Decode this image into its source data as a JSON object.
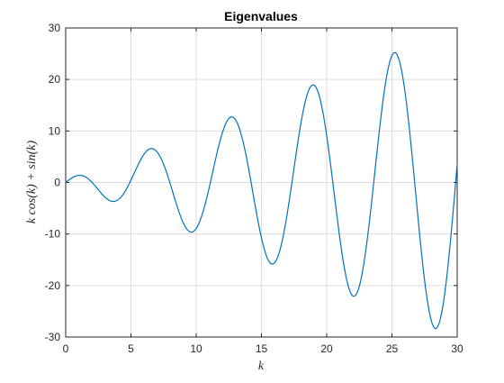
{
  "chart_data": {
    "type": "line",
    "title": "Eigenvalues",
    "xlabel": "k",
    "ylabel": "k cos(k) + sin(k)",
    "xlim": [
      0,
      30
    ],
    "ylim": [
      -30,
      30
    ],
    "xticks": [
      0,
      5,
      10,
      15,
      20,
      25,
      30
    ],
    "yticks": [
      -30,
      -20,
      -10,
      0,
      10,
      20,
      30
    ],
    "xtick_labels": [
      "0",
      "5",
      "10",
      "15",
      "20",
      "25",
      "30"
    ],
    "ytick_labels": [
      "-30",
      "-20",
      "-10",
      "0",
      "10",
      "20",
      "30"
    ],
    "grid": true,
    "legend": "none",
    "line_color": "#0072BD",
    "function": "k*cos(k)+sin(k)",
    "series": [
      {
        "x": [
          0,
          1,
          2,
          3,
          3.6,
          4,
          5,
          6,
          6.6,
          7,
          8,
          9,
          9.6,
          10,
          11,
          12,
          12.7,
          13,
          14,
          15,
          15.8,
          16,
          17,
          18,
          18.9,
          19,
          20,
          21,
          22.1,
          23,
          24,
          25.1,
          26,
          27,
          28.3,
          29,
          30
        ],
        "values": [
          0,
          1.38,
          0.08,
          -2.83,
          -3.62,
          -3.37,
          0.46,
          5.48,
          6.54,
          5.93,
          -1.17,
          -7.79,
          -9.45,
          -8.93,
          3.03,
          9.59,
          12.67,
          11.84,
          2.36,
          -11.95,
          -15.89,
          -15.6,
          -4.18,
          11.58,
          18.84,
          18.39,
          9.05,
          -11.56,
          -22.08,
          -12.38,
          3.27,
          25.08,
          17.69,
          -3.95,
          -28.27,
          -21.48,
          3.45
        ]
      }
    ]
  }
}
